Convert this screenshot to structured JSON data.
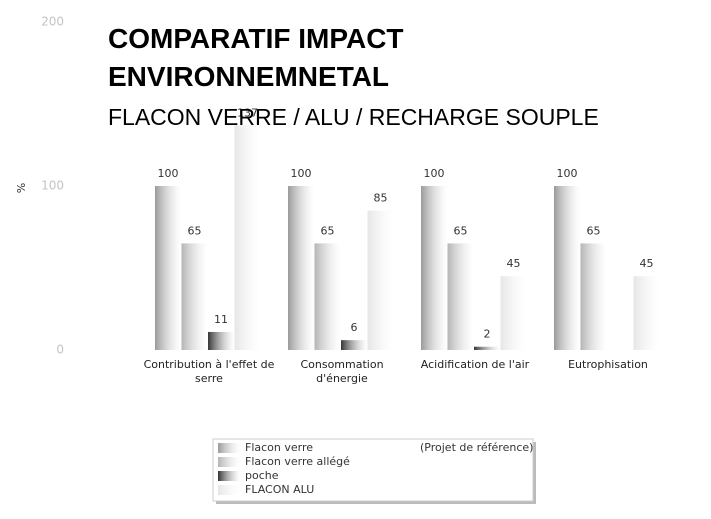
{
  "chart_data": {
    "type": "bar",
    "title": "COMPARATIF IMPACT ENVIRONNEMNETAL",
    "subtitle": "FLACON VERRE / ALU / RECHARGE SOUPLE",
    "y_label": "%",
    "categories": [
      "Contribution à l'effet de serre",
      "Consommation d'énergie",
      "Acidification de l'air",
      "Eutrophisation"
    ],
    "series": [
      {
        "name": "Flacon verre",
        "color": "#9a9a9a",
        "values": [
          100,
          100,
          100,
          100
        ]
      },
      {
        "name": "Flacon verre allégé",
        "color": "#b4b4b4",
        "values": [
          65,
          65,
          65,
          65
        ]
      },
      {
        "name": "poche",
        "color": "#353535",
        "values": [
          11,
          6,
          2,
          null
        ]
      },
      {
        "name": "FLACON ALU",
        "color": "#e6e6e6",
        "values": [
          137,
          85,
          45,
          45
        ]
      }
    ],
    "legend_annotation": "(Projet de référence)",
    "ylim": [
      0,
      200
    ],
    "yticks": [
      0,
      100,
      200
    ],
    "grid": false
  }
}
